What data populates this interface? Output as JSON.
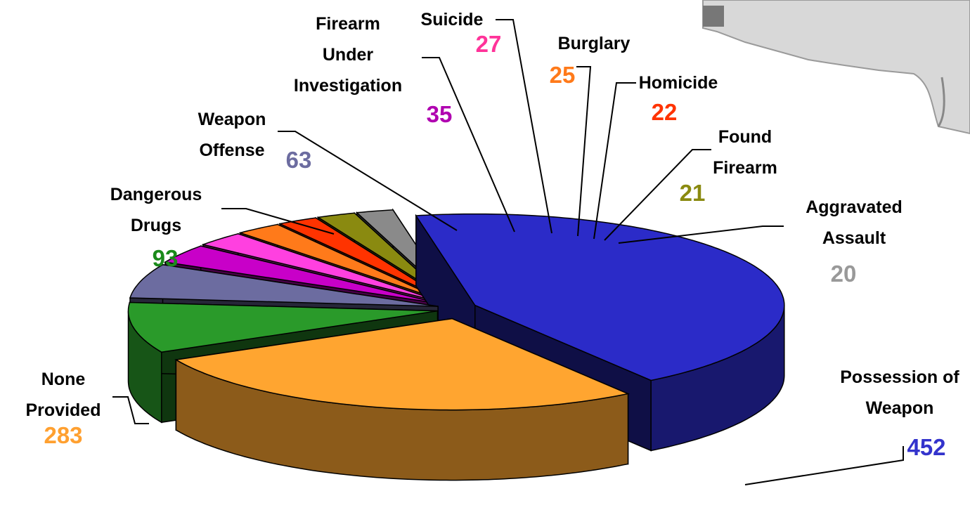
{
  "chart_data": {
    "type": "pie",
    "categories": [
      "Possession of Weapon",
      "None Provided",
      "Dangerous Drugs",
      "Weapon Offense",
      "Firearm Under Investigation",
      "Suicide",
      "Burglary",
      "Homicide",
      "Found Firearm",
      "Aggravated Assault"
    ],
    "values": [
      452,
      283,
      93,
      63,
      35,
      27,
      25,
      22,
      21,
      20
    ],
    "colors": [
      "#2b2bc8",
      "#ffa530",
      "#2a9a2a",
      "#6c6ca0",
      "#c800c8",
      "#ff40e0",
      "#ff7a1a",
      "#ff3300",
      "#8a8a10",
      "#8a8a8a"
    ],
    "label_colors": [
      "#3333cc",
      "#ffa030",
      "#1a8a1a",
      "#6c6ca0",
      "#b000b0",
      "#ff3399",
      "#ff7a1a",
      "#ff3300",
      "#8a8a10",
      "#999999"
    ]
  }
}
